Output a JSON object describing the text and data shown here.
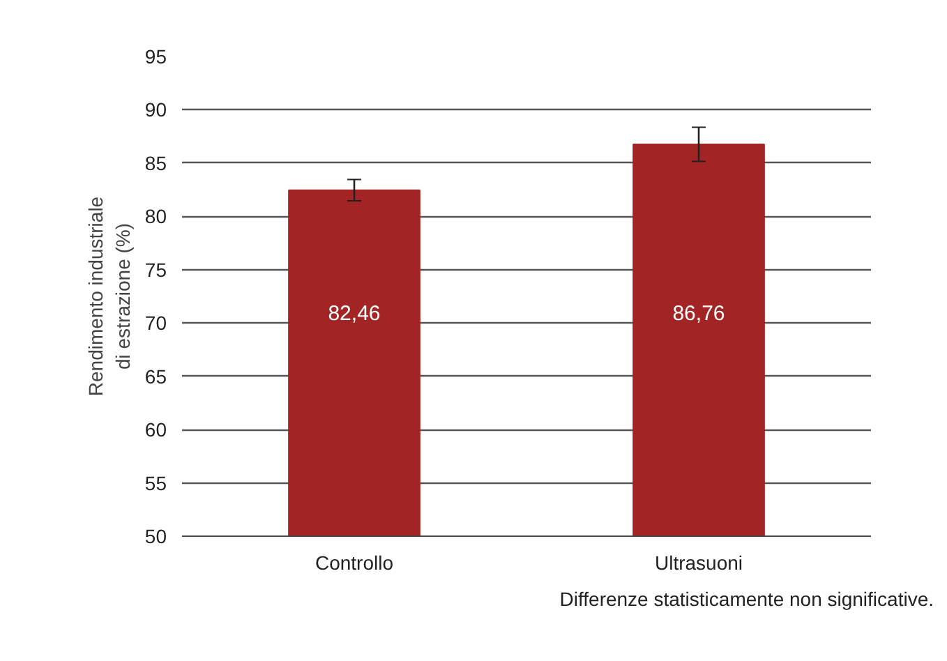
{
  "chart_data": {
    "type": "bar",
    "ylabel": "Rendimento industriale\ndi estrazione (%)",
    "categories": [
      "Controllo",
      "Ultrasuoni"
    ],
    "values": [
      82.46,
      86.76
    ],
    "color": "#a32424",
    "errors": [
      1.0,
      1.6
    ],
    "value_labels": [
      "82,46",
      "86,76"
    ],
    "ylim": [
      50,
      95
    ],
    "yticks": [
      50,
      55,
      60,
      65,
      70,
      75,
      80,
      85,
      90,
      95
    ],
    "grid": "y",
    "annotations": [
      "Differenze statisticamente non significative."
    ]
  }
}
